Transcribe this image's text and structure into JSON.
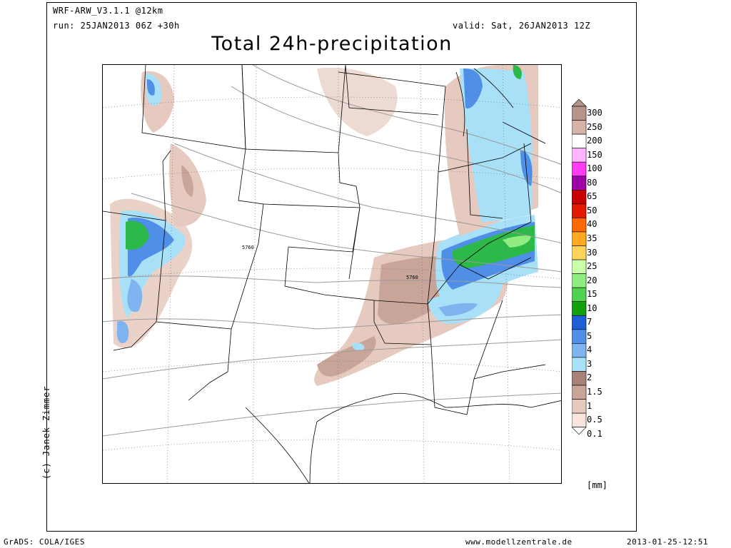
{
  "header": {
    "model": "WRF-ARW_V3.1.1 @12km",
    "run": "run: 25JAN2013 06Z +30h",
    "valid": "valid: Sat, 26JAN2013 12Z"
  },
  "title": "Total 24h-precipitation",
  "credit": "(c) Janek Zimmer",
  "legend": {
    "labels": [
      "300",
      "250",
      "200",
      "150",
      "100",
      "80",
      "65",
      "50",
      "40",
      "35",
      "30",
      "25",
      "20",
      "15",
      "10",
      "7",
      "5",
      "4",
      "3",
      "2",
      "1.5",
      "1",
      "0.5",
      "0.1"
    ],
    "colors": [
      "#b5958a",
      "#d7b2a8",
      "#ffffff",
      "#ffb4ff",
      "#ff3cf3",
      "#9e00a8",
      "#c80000",
      "#e31a00",
      "#ff6a00",
      "#ffaa20",
      "#ffd35a",
      "#c8ffa8",
      "#90ee80",
      "#4fd24f",
      "#10a010",
      "#1e5fd6",
      "#4f8fe8",
      "#7fb4f0",
      "#a8e0f7",
      "#a8827a",
      "#c9a499",
      "#e6cabf",
      "#f7e5de"
    ],
    "units": "[mm]"
  },
  "contour_labels": [
    "5760",
    "5760"
  ],
  "footer": {
    "software": "GrADS: COLA/IGES",
    "site": "www.modellzentrale.de",
    "timestamp": "2013-01-25-12:51"
  }
}
